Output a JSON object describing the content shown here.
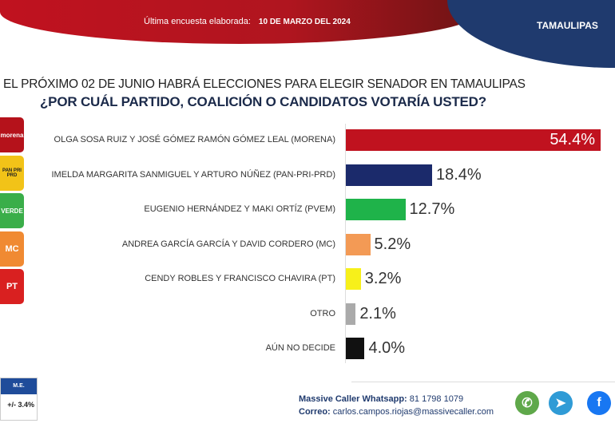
{
  "header": {
    "survey_label": "Última encuesta elaborada:",
    "survey_date": "10 DE MARZO DEL 2024",
    "state": "TAMAULIPAS"
  },
  "question": {
    "line1": "EL PRÓXIMO 02 DE JUNIO HABRÁ ELECCIONES PARA ELEGIR SENADOR EN TAMAULIPAS",
    "line2": "¿POR CUÁL PARTIDO, COALICIÓN O CANDIDATOS VOTARÍA USTED?"
  },
  "logos": [
    {
      "text": "morena",
      "color": "#b5121b"
    },
    {
      "text": "PAN PRI PRD",
      "color": "#f2c318"
    },
    {
      "text": "VERDE",
      "color": "#3aae49"
    },
    {
      "text": "MC",
      "color": "#f08a32"
    },
    {
      "text": "PT",
      "color": "#d92020"
    }
  ],
  "chart_data": {
    "type": "bar",
    "orientation": "horizontal",
    "xlim": [
      0,
      60
    ],
    "categories": [
      "OLGA SOSA RUIZ Y JOSÉ GÓMEZ RAMÓN GÓMEZ LEAL (MORENA)",
      "IMELDA MARGARITA SANMIGUEL Y ARTURO NÚÑEZ (PAN-PRI-PRD)",
      "EUGENIO HERNÁNDEZ  Y MAKI ORTÍZ (PVEM)",
      "ANDREA GARCÍA GARCÍA  Y DAVID CORDERO (MC)",
      "CENDY ROBLES Y FRANCISCO CHAVIRA (PT)",
      "OTRO",
      "AÚN NO DECIDE"
    ],
    "values": [
      54.4,
      18.4,
      12.7,
      5.2,
      3.2,
      2.1,
      4.0
    ],
    "labels": [
      "54.4%",
      "18.4%",
      "12.7%",
      "5.2%",
      "3.2%",
      "2.1%",
      "4.0%"
    ],
    "colors": [
      "#c0121f",
      "#1b2a6b",
      "#1fb34a",
      "#f39a55",
      "#f7f01a",
      "#aaaaaa",
      "#111111"
    ]
  },
  "margin_error": {
    "label": "M.E.",
    "value": "+/- 3.4%"
  },
  "footer": {
    "whatsapp_label": "Massive Caller Whatsapp:",
    "whatsapp": "81 1798 1079",
    "email_label": "Correo:",
    "email": "carlos.campos.riojas@massivecaller.com"
  }
}
